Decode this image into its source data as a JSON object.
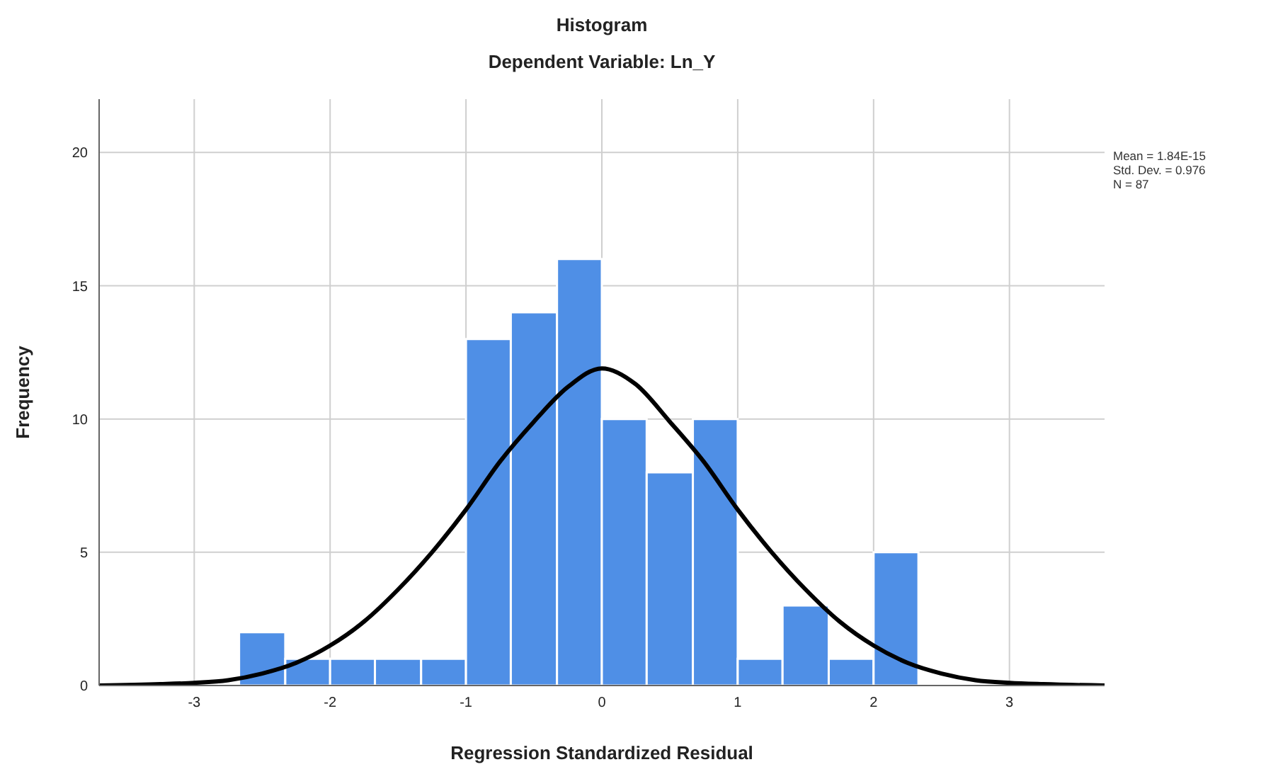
{
  "chart_data": {
    "type": "histogram",
    "title": "Histogram",
    "subtitle": "Dependent Variable: Ln_Y",
    "xlabel": "Regression Standardized Residual",
    "ylabel": "Frequency",
    "bins": [
      -2.67,
      -2.33,
      -2,
      -1.67,
      -1.33,
      -1,
      -0.67,
      -0.33,
      0,
      0.33,
      0.67,
      1,
      1.33,
      1.67,
      2,
      2.33
    ],
    "values": [
      2,
      1,
      1,
      1,
      1,
      13,
      14,
      16,
      10,
      8,
      10,
      1,
      3,
      1,
      5
    ],
    "color": "#4f8fe6",
    "series": [
      {
        "type": "line",
        "color": "#000000",
        "x": [
          -3.7,
          -3.25,
          -3,
          -2.75,
          -2.5,
          -2.25,
          -2,
          -1.75,
          -1.5,
          -1.25,
          -1,
          -0.75,
          -0.5,
          -0.25,
          0,
          0.25,
          0.5,
          0.75,
          1,
          1.25,
          1.5,
          1.75,
          2,
          2.25,
          2.5,
          2.75,
          3,
          3.25,
          3.7
        ],
        "values": [
          0,
          0.05,
          0.1,
          0.2,
          0.45,
          0.85,
          1.5,
          2.4,
          3.6,
          5,
          6.6,
          8.4,
          9.9,
          11.2,
          11.9,
          11.3,
          9.9,
          8.4,
          6.6,
          5,
          3.6,
          2.4,
          1.5,
          0.85,
          0.45,
          0.2,
          0.1,
          0.05,
          0
        ]
      }
    ],
    "xlim": [
      -3.7,
      3.7
    ],
    "xticks": [
      -3,
      -2,
      -1,
      0,
      1,
      2,
      3
    ],
    "ylim": [
      0,
      22
    ],
    "yticks": [
      0,
      5,
      10,
      15,
      20
    ],
    "grid": true,
    "marker": "none",
    "line_style": "solid",
    "annotations": [
      "Mean = 1.84E-15",
      "Std. Dev. = 0.976",
      "N = 87"
    ]
  }
}
